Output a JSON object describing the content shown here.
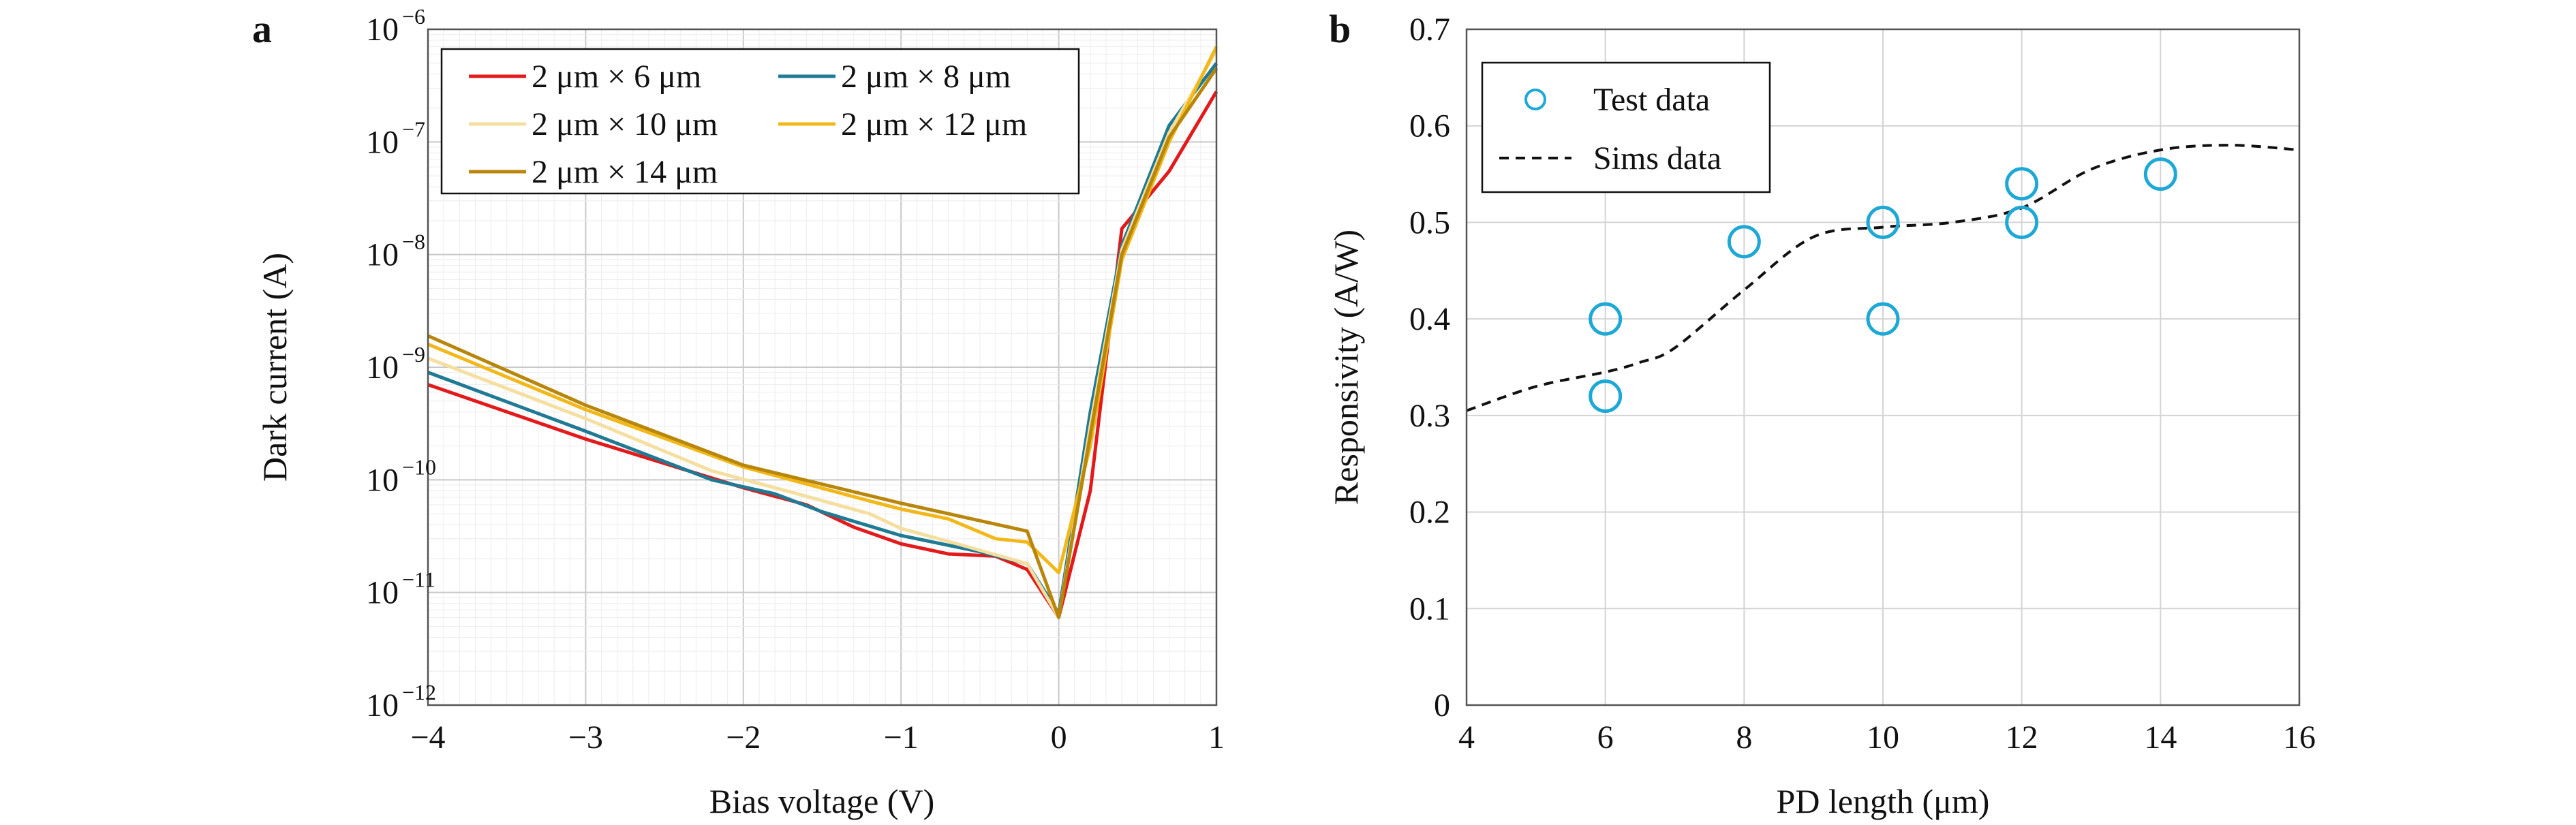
{
  "chart_data": [
    {
      "panel_label": "a",
      "type": "line",
      "xlabel": "Bias voltage (V)",
      "ylabel": "Dark current (A)",
      "xlim": [
        -4,
        1
      ],
      "ylim": [
        1e-12,
        1e-06
      ],
      "yscale": "log",
      "grid": true,
      "legend_position": "top-left",
      "x_ticks": [
        "−4",
        "−3",
        "−2",
        "−1",
        "0",
        "1"
      ],
      "y_tick_mantissa": "10",
      "y_ticks": [
        {
          "exp": "−12",
          "value": 1e-12
        },
        {
          "exp": "−11",
          "value": 1e-11
        },
        {
          "exp": "−10",
          "value": 1e-10
        },
        {
          "exp": "−9",
          "value": 1e-09
        },
        {
          "exp": "−8",
          "value": 1e-08
        },
        {
          "exp": "−7",
          "value": 1e-07
        },
        {
          "exp": "−6",
          "value": 1e-06
        }
      ],
      "series": [
        {
          "name": "2 μm × 6 μm",
          "color": "#e31a1c",
          "x": [
            -4,
            -3,
            -2,
            -1.6,
            -1.3,
            -1,
            -0.7,
            -0.4,
            -0.2,
            0,
            0.2,
            0.4,
            0.7,
            1
          ],
          "y": [
            7e-10,
            2.3e-10,
            8.5e-11,
            6e-11,
            3.8e-11,
            2.7e-11,
            2.2e-11,
            2.1e-11,
            1.6e-11,
            6e-12,
            8e-11,
            1.7e-08,
            5.5e-08,
            2.8e-07
          ]
        },
        {
          "name": "2 μm × 8 μm",
          "color": "#1f7a94",
          "x": [
            -4,
            -3,
            -2.2,
            -1.8,
            -1.5,
            -1,
            -0.5,
            -0.2,
            0,
            0.2,
            0.4,
            0.7,
            1
          ],
          "y": [
            9e-10,
            2.7e-10,
            1e-10,
            7.5e-11,
            5.2e-11,
            3.2e-11,
            2.3e-11,
            1.8e-11,
            6.5e-12,
            4e-10,
            1.2e-08,
            1.4e-07,
            5e-07
          ]
        },
        {
          "name": "2 μm × 10 μm",
          "color": "#f5dfa0",
          "x": [
            -4,
            -3,
            -2.2,
            -1.7,
            -1.2,
            -1,
            -0.6,
            -0.2,
            0,
            0.2,
            0.4,
            0.7,
            1
          ],
          "y": [
            1.2e-09,
            3.5e-10,
            1.2e-10,
            7.8e-11,
            5e-11,
            3.7e-11,
            2.6e-11,
            1.8e-11,
            6e-12,
            3e-10,
            1.1e-08,
            1.2e-07,
            6.5e-07
          ]
        },
        {
          "name": "2 μm × 12 μm",
          "color": "#f2b81a",
          "x": [
            -4,
            -3,
            -2,
            -1.2,
            -1,
            -0.7,
            -0.4,
            -0.2,
            0,
            0.2,
            0.4,
            0.7,
            1
          ],
          "y": [
            1.6e-09,
            4.2e-10,
            1.3e-10,
            6.5e-11,
            5.5e-11,
            4.5e-11,
            3e-11,
            2.8e-11,
            1.5e-11,
            2e-10,
            9e-09,
            1e-07,
            7e-07
          ]
        },
        {
          "name": "2 μm × 14 μm",
          "color": "#b8860b",
          "x": [
            -4,
            -3,
            -2,
            -1,
            -0.2,
            0,
            0.2,
            0.4,
            0.7,
            1
          ],
          "y": [
            1.9e-09,
            4.6e-10,
            1.35e-10,
            6.2e-11,
            3.5e-11,
            6e-12,
            2.5e-10,
            1e-08,
            1.1e-07,
            4.5e-07
          ]
        }
      ]
    },
    {
      "panel_label": "b",
      "type": "scatter",
      "xlabel": "PD length (μm)",
      "ylabel": "Responsivity (A/W)",
      "xlim": [
        4,
        16
      ],
      "ylim": [
        0,
        0.7
      ],
      "grid": true,
      "legend_position": "top-left",
      "x_ticks": [
        "4",
        "6",
        "8",
        "10",
        "12",
        "14",
        "16"
      ],
      "y_ticks": [
        "0",
        "0.1",
        "0.2",
        "0.3",
        "0.4",
        "0.5",
        "0.6",
        "0.7"
      ],
      "series": [
        {
          "name": "Test data",
          "style": "open-circle",
          "color": "#1ea8d6",
          "x": [
            6,
            6,
            8,
            10,
            10,
            12,
            12,
            14
          ],
          "y": [
            0.4,
            0.32,
            0.48,
            0.5,
            0.4,
            0.54,
            0.5,
            0.55
          ]
        },
        {
          "name": "Sims data",
          "style": "dashed-line",
          "color": "#111111",
          "x": [
            4,
            5,
            6,
            6.5,
            7,
            8,
            9,
            10,
            11,
            12,
            13,
            14,
            15,
            16
          ],
          "y": [
            0.305,
            0.33,
            0.345,
            0.355,
            0.37,
            0.43,
            0.485,
            0.495,
            0.5,
            0.515,
            0.555,
            0.575,
            0.58,
            0.575
          ]
        }
      ]
    }
  ]
}
